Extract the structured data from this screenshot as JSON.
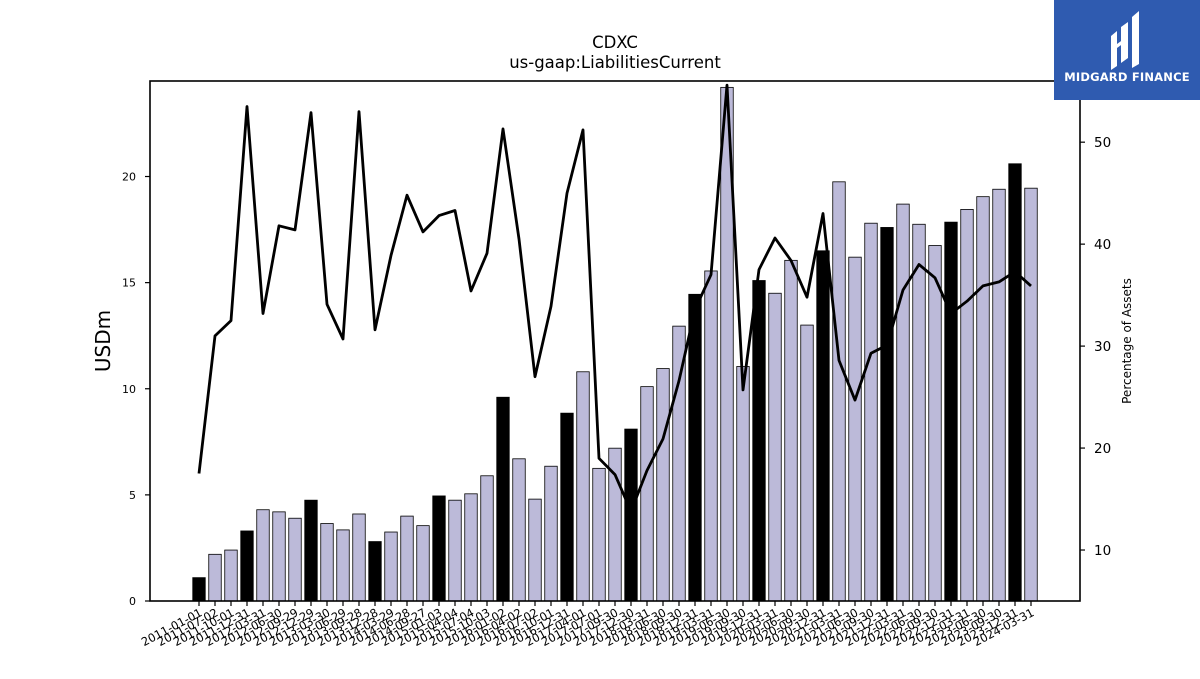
{
  "chart_data": {
    "type": "bar",
    "title": "CDXC",
    "subtitle": "us-gaap:LiabilitiesCurrent",
    "ylabel": "USDm",
    "y2label": "Percentage of Assets",
    "ylim": [
      0,
      24.5
    ],
    "y2lim": [
      5,
      56
    ],
    "yticks": [
      0,
      5,
      10,
      15,
      20
    ],
    "y2ticks": [
      10,
      20,
      30,
      40,
      50
    ],
    "grid": false,
    "legend": "none",
    "colors": {
      "bar": "#bcbad9",
      "bar_highlight": "#000000",
      "line": "#000000",
      "edge": "#000000"
    },
    "categories": [
      "2011-01-01",
      "2011-07-02",
      "2011-10-01",
      "2011-12-31",
      "2012-03-31",
      "2012-06-30",
      "2012-09-29",
      "2012-12-29",
      "2013-03-30",
      "2013-06-29",
      "2013-09-28",
      "2013-12-28",
      "2014-03-29",
      "2014-06-28",
      "2014-09-27",
      "2015-01-03",
      "2015-04-04",
      "2015-07-04",
      "2015-10-03",
      "2016-01-02",
      "2016-04-02",
      "2016-07-02",
      "2016-10-01",
      "2016-12-31",
      "2017-04-01",
      "2017-07-01",
      "2017-09-30",
      "2017-12-30",
      "2018-03-31",
      "2018-06-30",
      "2018-09-30",
      "2018-12-31",
      "2019-03-31",
      "2019-06-30",
      "2019-09-30",
      "2019-12-31",
      "2020-03-31",
      "2020-06-30",
      "2020-09-30",
      "2020-12-31",
      "2021-03-31",
      "2021-06-30",
      "2021-09-30",
      "2021-12-31",
      "2022-03-31",
      "2022-06-30",
      "2022-09-30",
      "2022-12-31",
      "2023-03-31",
      "2023-06-30",
      "2023-09-30",
      "2023-12-31",
      "2024-03-31"
    ],
    "series": [
      {
        "kind": "bar",
        "values": [
          1.1,
          2.2,
          2.4,
          3.3,
          4.3,
          4.2,
          3.9,
          4.75,
          3.65,
          3.35,
          4.1,
          2.8,
          3.25,
          4.0,
          3.55,
          4.95,
          4.75,
          5.05,
          5.9,
          9.6,
          6.7,
          4.8,
          6.35,
          8.85,
          10.8,
          6.25,
          7.2,
          8.1,
          10.1,
          10.95,
          12.95,
          14.45,
          15.55,
          24.2,
          11.05,
          15.1,
          14.5,
          16.05,
          13.0,
          16.5,
          19.75,
          16.2,
          17.8,
          17.6,
          18.7,
          17.75,
          16.75,
          17.85,
          18.45,
          19.05,
          19.4,
          20.6,
          19.45
        ],
        "highlight": [
          1,
          0,
          0,
          1,
          0,
          0,
          0,
          1,
          0,
          0,
          0,
          1,
          0,
          0,
          0,
          1,
          0,
          0,
          0,
          1,
          0,
          0,
          0,
          1,
          0,
          0,
          0,
          1,
          0,
          0,
          0,
          1,
          0,
          0,
          0,
          1,
          0,
          0,
          0,
          1,
          0,
          0,
          0,
          1,
          0,
          0,
          0,
          1,
          0,
          0,
          0,
          1,
          0
        ]
      },
      {
        "kind": "line",
        "axis": "right",
        "values": [
          17.5,
          31.0,
          32.5,
          53.5,
          33.2,
          41.8,
          41.4,
          52.9,
          34.1,
          30.7,
          53.0,
          31.6,
          38.9,
          44.8,
          41.2,
          42.8,
          43.3,
          35.4,
          39.1,
          51.3,
          40.5,
          27.0,
          33.9,
          45.0,
          51.2,
          19.0,
          17.4,
          13.8,
          17.8,
          20.9,
          26.6,
          33.6,
          37.0,
          55.6,
          25.7,
          37.5,
          40.6,
          38.4,
          34.8,
          43.0,
          28.6,
          24.7,
          29.3,
          30.1,
          35.5,
          38.0,
          36.7,
          33.2,
          34.4,
          35.9,
          36.3,
          37.3,
          35.9
        ]
      }
    ]
  },
  "logo": {
    "text": "MIDGARD FINANCE",
    "bg": "#2f5bb0"
  }
}
